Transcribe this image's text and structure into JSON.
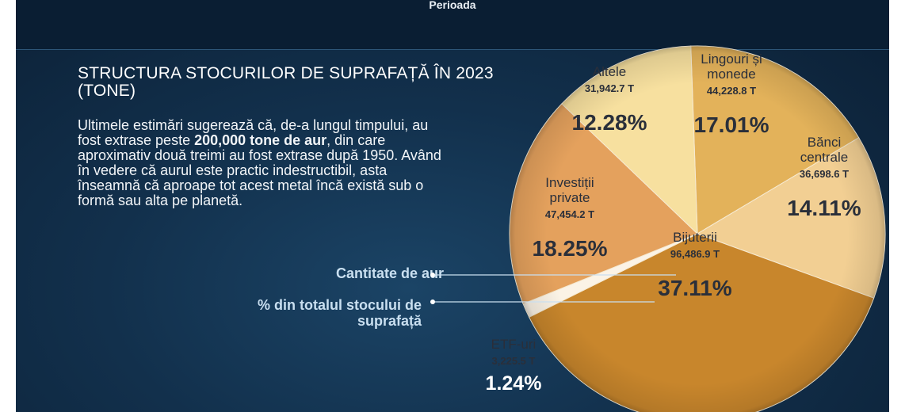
{
  "header": {
    "period_label": "Perioada"
  },
  "title": "STRUCTURA STOCURILOR DE SUPRAFAȚĂ ÎN 2023 (TONE)",
  "description": {
    "part1": "Ultimele estimări sugerează că, de-a lungul timpului, au fost extrase peste ",
    "bold": "200,000 tone de aur",
    "part2": ", din care aproximativ două treimi au fost extrase după 1950. Având în vedere că aurul este practic indestructibil, asta înseamnă că aproape tot acest metal încă există sub o formă sau alta pe planetă."
  },
  "legend": {
    "quantity": "Cantitate de aur",
    "percent": "% din totalul stocului de suprafață"
  },
  "chart_data": {
    "type": "pie",
    "title": "STRUCTURA STOCURILOR DE SUPRAFAȚĂ ÎN 2023 (TONE)",
    "slices": [
      {
        "name": "Lingouri și monede",
        "value_label": "44,228.8 T",
        "value": 44228.8,
        "percent": 17.01,
        "percent_label": "17.01%",
        "color": "#e3b25a"
      },
      {
        "name": "Bănci centrale",
        "value_label": "36,698.6 T",
        "value": 36698.6,
        "percent": 14.11,
        "percent_label": "14.11%",
        "color": "#f2cf93"
      },
      {
        "name": "Bijuterii",
        "value_label": "96,486.9 T",
        "value": 96486.9,
        "percent": 37.11,
        "percent_label": "37.11%",
        "color": "#c8862c"
      },
      {
        "name": "ETF-uri",
        "value_label": "3,225.5 T",
        "value": 3225.5,
        "percent": 1.24,
        "percent_label": "1.24%",
        "color": "#fbf3e6"
      },
      {
        "name": "Investiții private",
        "value_label": "47,454.2 T",
        "value": 47454.2,
        "percent": 18.25,
        "percent_label": "18.25%",
        "color": "#e4a15d"
      },
      {
        "name": "Altele",
        "value_label": "31,942.7 T",
        "value": 31942.7,
        "percent": 12.28,
        "percent_label": "12.28%",
        "color": "#f7e09f"
      }
    ]
  }
}
